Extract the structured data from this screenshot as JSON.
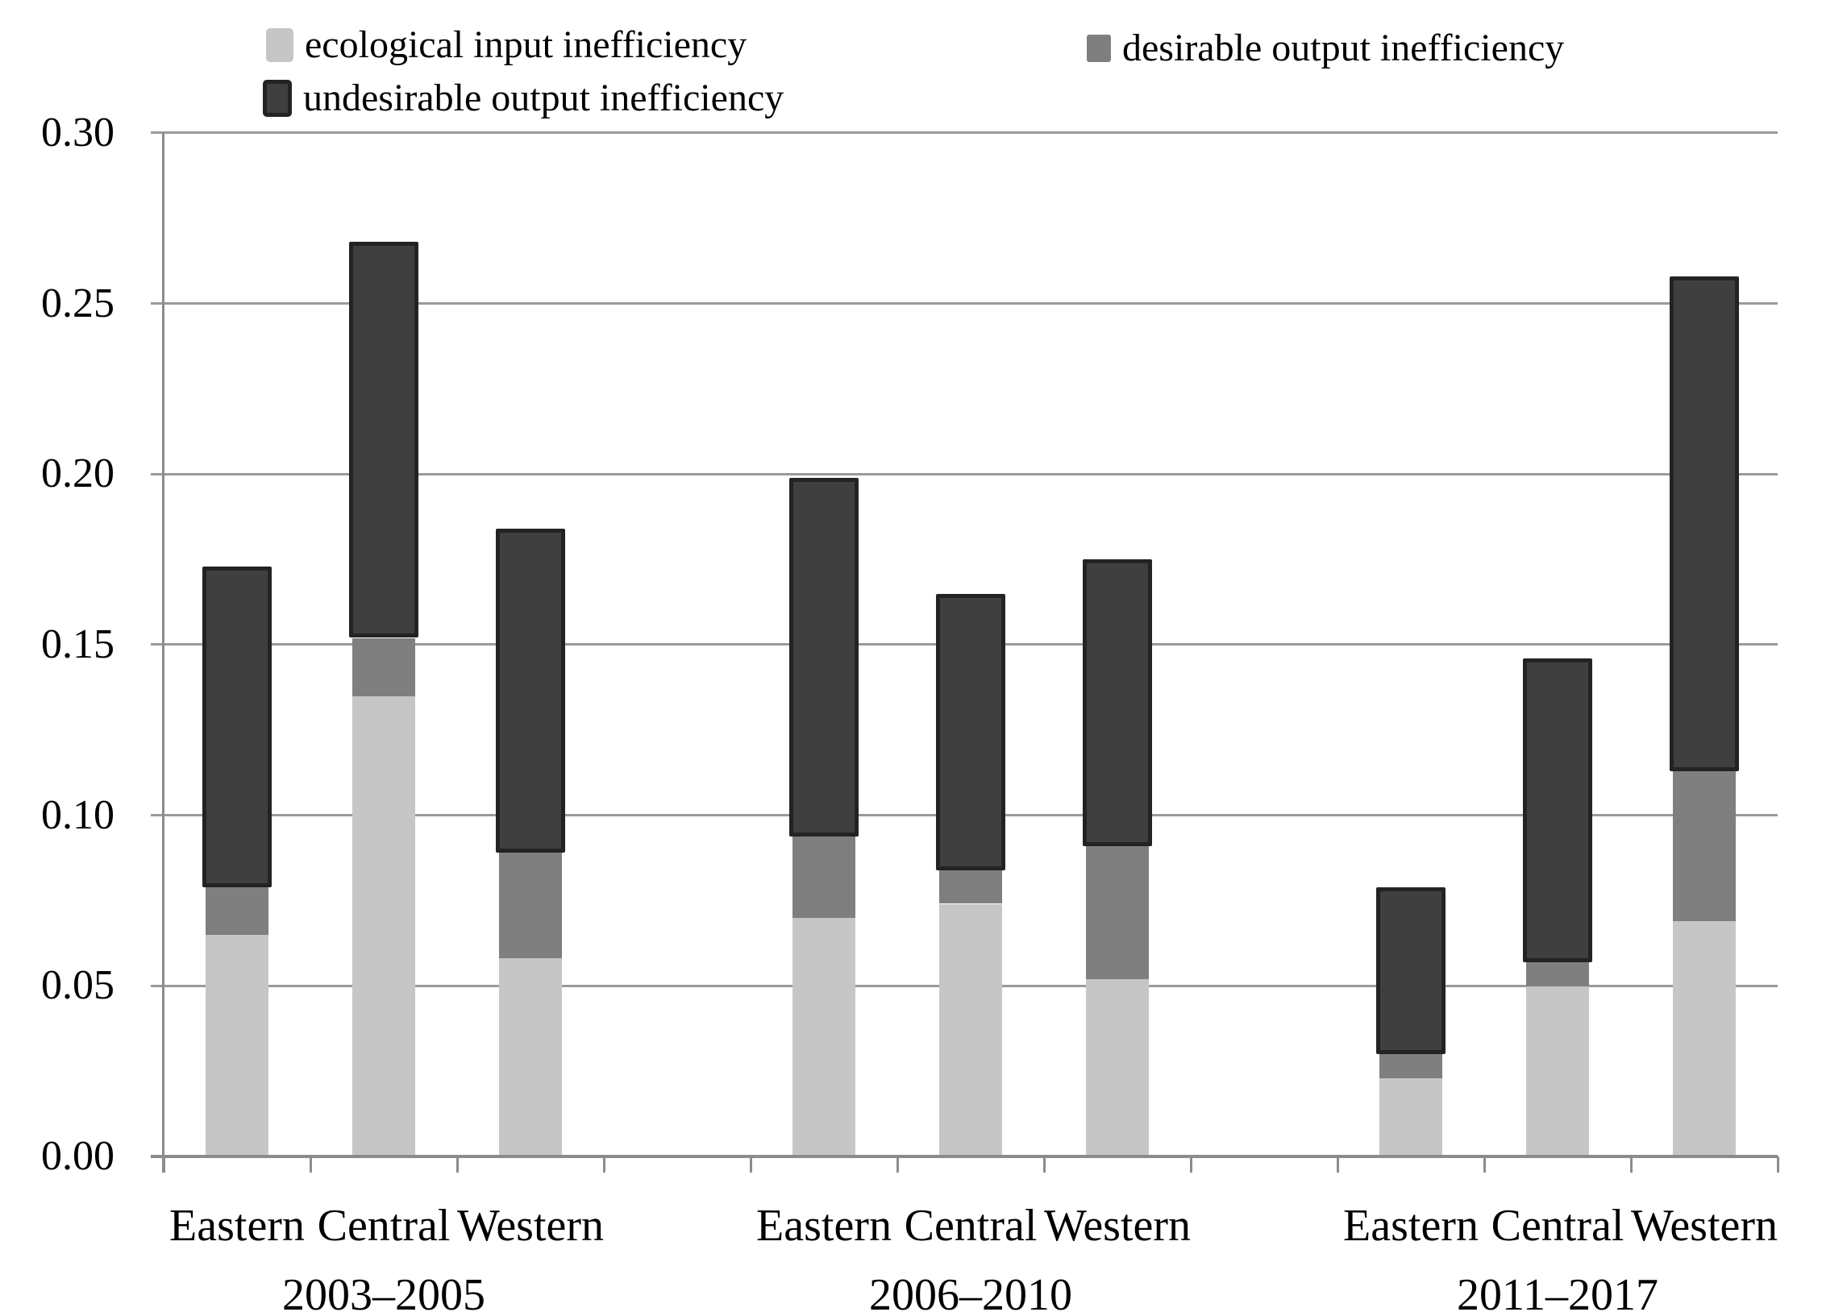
{
  "legend": {
    "items": [
      {
        "id": "ecological",
        "label": "ecological input inefficiency",
        "color": "#c6c6c6"
      },
      {
        "id": "desirable",
        "label": "desirable output inefficiency",
        "color": "#7f7f7f"
      },
      {
        "id": "undesirable",
        "label": "undesirable output inefficiency",
        "color": "#3f3f3f",
        "border_color": "#232323"
      }
    ]
  },
  "axes": {
    "ytick_labels": [
      "0.00",
      "0.05",
      "0.10",
      "0.15",
      "0.20",
      "0.25",
      "0.30"
    ]
  },
  "colors": {
    "grid": "#9a9a9a",
    "axis": "#8c8c8c",
    "text": "#000000",
    "background": "#ffffff"
  },
  "chart_data": {
    "type": "bar",
    "stacked": true,
    "title": "",
    "xlabel": "",
    "ylabel": "",
    "ylim": [
      0,
      0.3
    ],
    "ytick_step": 0.05,
    "grid": true,
    "legend_position": "top",
    "groups": [
      {
        "label": "2003–2005",
        "categories": [
          "Eastern",
          "Central",
          "Western"
        ]
      },
      {
        "label": "2006–2010",
        "categories": [
          "Eastern",
          "Central",
          "Western"
        ]
      },
      {
        "label": "2011–2017",
        "categories": [
          "Eastern",
          "Central",
          "Western"
        ]
      }
    ],
    "categories": [
      "Eastern",
      "Central",
      "Western",
      "Eastern",
      "Central",
      "Western",
      "Eastern",
      "Central",
      "Western"
    ],
    "series": [
      {
        "name": "ecological input inefficiency",
        "color": "#c6c6c6",
        "values": [
          0.065,
          0.135,
          0.058,
          0.07,
          0.074,
          0.052,
          0.023,
          0.05,
          0.069
        ]
      },
      {
        "name": "desirable output inefficiency",
        "color": "#7f7f7f",
        "values": [
          0.014,
          0.017,
          0.031,
          0.024,
          0.01,
          0.039,
          0.007,
          0.007,
          0.044
        ]
      },
      {
        "name": "undesirable output inefficiency",
        "color": "#3f3f3f",
        "border_color": "#232323",
        "values": [
          0.094,
          0.116,
          0.095,
          0.105,
          0.081,
          0.084,
          0.049,
          0.089,
          0.145
        ]
      }
    ],
    "totals": [
      0.173,
      0.268,
      0.184,
      0.199,
      0.165,
      0.175,
      0.079,
      0.146,
      0.258
    ]
  }
}
